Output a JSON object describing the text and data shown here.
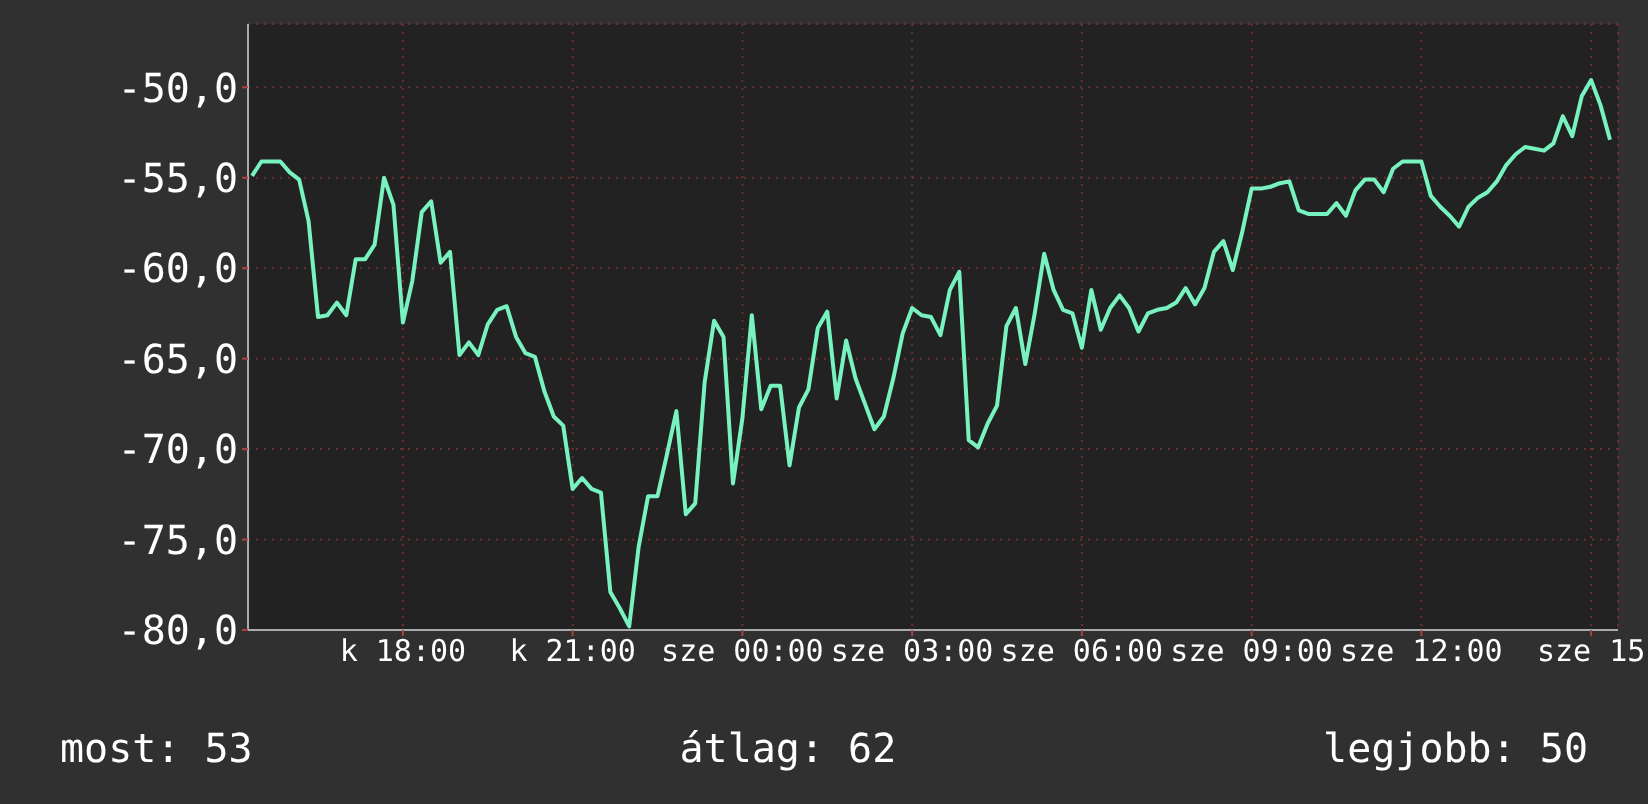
{
  "chart_data": {
    "type": "line",
    "ylim": [
      -80,
      -46.5
    ],
    "categories": [
      null,
      null,
      null,
      null,
      null,
      null,
      null,
      null,
      null,
      null,
      null,
      null,
      null,
      null,
      null,
      null,
      "k 18:00",
      null,
      null,
      null,
      null,
      null,
      null,
      null,
      null,
      null,
      null,
      null,
      null,
      null,
      null,
      null,
      null,
      null,
      "k 21:00",
      null,
      null,
      null,
      null,
      null,
      null,
      null,
      null,
      null,
      null,
      null,
      null,
      null,
      null,
      null,
      null,
      null,
      "sze 00:00",
      null,
      null,
      null,
      null,
      null,
      null,
      null,
      null,
      null,
      null,
      null,
      null,
      null,
      null,
      null,
      null,
      null,
      "sze 03:00",
      null,
      null,
      null,
      null,
      null,
      null,
      null,
      null,
      null,
      null,
      null,
      null,
      null,
      null,
      null,
      null,
      null,
      "sze 06:00",
      null,
      null,
      null,
      null,
      null,
      null,
      null,
      null,
      null,
      null,
      null,
      null,
      null,
      null,
      null,
      null,
      null,
      "sze 09:00",
      null,
      null,
      null,
      null,
      null,
      null,
      null,
      null,
      null,
      null,
      null,
      null,
      null,
      null,
      null,
      null,
      null,
      "sze 12:00",
      null,
      null,
      null,
      null,
      null,
      null,
      null,
      null,
      null,
      null,
      null,
      null,
      null,
      null,
      null,
      null,
      null,
      "sze 15",
      null,
      null
    ],
    "yticks": [
      {
        "value": -80,
        "label": "-80,0"
      },
      {
        "value": -75,
        "label": "-75,0"
      },
      {
        "value": -70,
        "label": "-70,0"
      },
      {
        "value": -65,
        "label": "-65,0"
      },
      {
        "value": -60,
        "label": "-60,0"
      },
      {
        "value": -55,
        "label": "-55,0"
      },
      {
        "value": -50,
        "label": "-50,0"
      }
    ],
    "grid": true,
    "annotations": [
      "most: 53",
      "átlag: 62",
      "legjobb: 50"
    ],
    "series": [
      {
        "color": "#78f2bf",
        "values": [
          -54.9,
          -54.1,
          -54.1,
          -54.1,
          -54.7,
          -55.1,
          -57.4,
          -62.7,
          -62.6,
          -61.9,
          -62.6,
          -59.5,
          -59.5,
          -58.7,
          -55.0,
          -56.5,
          -63.0,
          -60.7,
          -56.9,
          -56.3,
          -59.7,
          -59.1,
          -64.8,
          -64.1,
          -64.8,
          -63.1,
          -62.3,
          -62.1,
          -63.8,
          -64.7,
          -64.9,
          -66.8,
          -68.2,
          -68.7,
          -72.2,
          -71.6,
          -72.2,
          -72.4,
          -77.9,
          -78.8,
          -79.8,
          -75.4,
          -72.6,
          -72.6,
          -70.3,
          -67.9,
          -73.6,
          -73.0,
          -66.3,
          -62.9,
          -63.8,
          -71.9,
          -68.3,
          -62.6,
          -67.8,
          -66.5,
          -66.5,
          -70.9,
          -67.7,
          -66.7,
          -63.3,
          -62.4,
          -67.2,
          -64.0,
          -66.1,
          -67.5,
          -68.9,
          -68.2,
          -66.1,
          -63.6,
          -62.2,
          -62.6,
          -62.7,
          -63.7,
          -61.2,
          -60.2,
          -69.5,
          -69.9,
          -68.6,
          -67.6,
          -63.2,
          -62.2,
          -65.3,
          -62.5,
          -59.2,
          -61.2,
          -62.3,
          -62.5,
          -64.4,
          -61.2,
          -63.4,
          -62.2,
          -61.5,
          -62.2,
          -63.5,
          -62.5,
          -62.3,
          -62.2,
          -61.9,
          -61.1,
          -62.0,
          -61.1,
          -59.1,
          -58.5,
          -60.1,
          -58.0,
          -55.6,
          -55.6,
          -55.5,
          -55.3,
          -55.2,
          -56.8,
          -57.0,
          -57.0,
          -57.0,
          -56.4,
          -57.1,
          -55.7,
          -55.1,
          -55.1,
          -55.8,
          -54.5,
          -54.1,
          -54.1,
          -54.1,
          -56.0,
          -56.6,
          -57.1,
          -57.7,
          -56.6,
          -56.1,
          -55.8,
          -55.2,
          -54.3,
          -53.7,
          -53.3,
          -53.4,
          -53.5,
          -53.1,
          -51.6,
          -52.7,
          -50.5,
          -49.6,
          -51.0,
          -52.9
        ]
      }
    ]
  }
}
